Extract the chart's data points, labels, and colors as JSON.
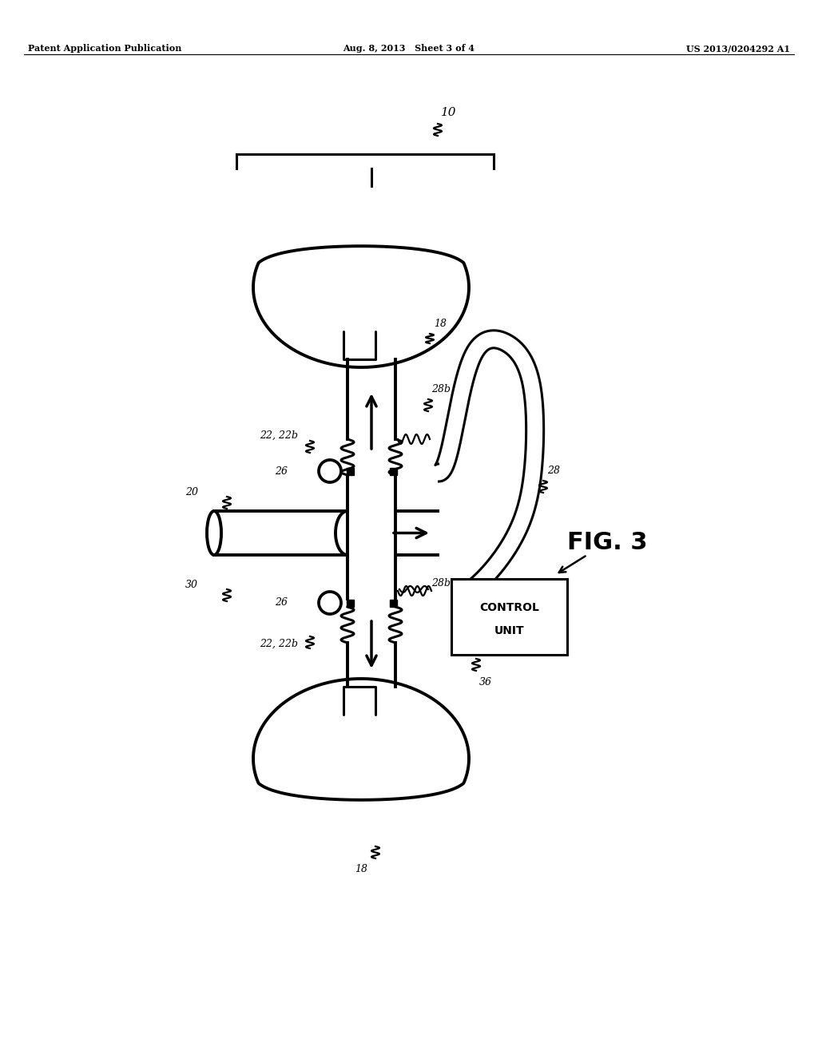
{
  "bg_color": "#ffffff",
  "header_left": "Patent Application Publication",
  "header_center": "Aug. 8, 2013   Sheet 3 of 4",
  "header_right": "US 2013/0204292 A1",
  "fig_label": "FIG. 3"
}
